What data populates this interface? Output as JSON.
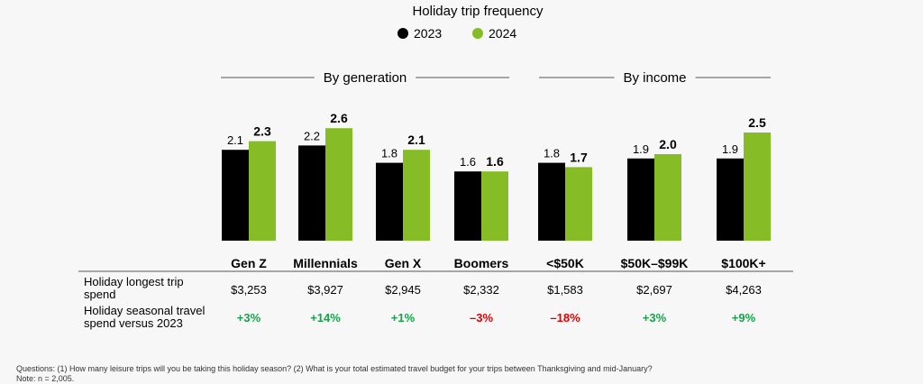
{
  "chart_data": {
    "type": "bar",
    "title": "Holiday trip frequency",
    "legend": {
      "placement": "top-center",
      "entries": [
        "2023",
        "2024"
      ]
    },
    "colors": {
      "2023": "#000000",
      "2024": "#86bc25",
      "positive": "#16a34a",
      "negative": "#e10000",
      "rule": "#555555"
    },
    "groups": [
      {
        "label": "By generation",
        "categories": [
          "Gen Z",
          "Millennials",
          "Gen X",
          "Boomers"
        ]
      },
      {
        "label": "By income",
        "categories": [
          "<$50K",
          "$50K–$99K",
          "$100K+"
        ]
      }
    ],
    "categories": [
      "Gen Z",
      "Millennials",
      "Gen X",
      "Boomers",
      "<$50K",
      "$50K–$99K",
      "$100K+"
    ],
    "series": [
      {
        "name": "2023",
        "values": [
          2.1,
          2.2,
          1.8,
          1.6,
          1.8,
          1.9,
          1.9
        ],
        "labels": [
          "2.1",
          "2.2",
          "1.8",
          "1.6",
          "1.8",
          "1.9",
          "1.9"
        ]
      },
      {
        "name": "2024",
        "values": [
          2.3,
          2.6,
          2.1,
          1.6,
          1.7,
          2.0,
          2.5
        ],
        "labels": [
          "2.3",
          "2.6",
          "2.1",
          "1.6",
          "1.7",
          "2.0",
          "2.5"
        ]
      }
    ],
    "ylim": [
      0,
      2.6
    ],
    "table": {
      "rows": [
        {
          "label": "Holiday longest trip spend",
          "values": [
            "$3,253",
            "$3,927",
            "$2,945",
            "$2,332",
            "$1,583",
            "$2,697",
            "$4,263"
          ]
        },
        {
          "label": "Holiday seasonal travel spend versus 2023",
          "values": [
            "+3%",
            "+14%",
            "+1%",
            "–3%",
            "–18%",
            "+3%",
            "+9%"
          ]
        }
      ]
    }
  },
  "footnotes": [
    "Questions: (1) How many leisure trips will you be taking this holiday season? (2) What is your total estimated travel budget for your trips between Thanksgiving and mid-January?",
    "Note: n = 2,005."
  ]
}
